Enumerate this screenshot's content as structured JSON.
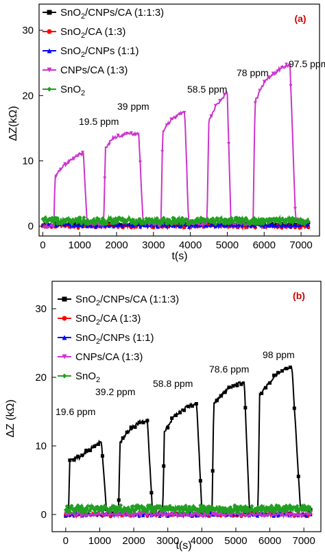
{
  "chart_data": [
    {
      "type": "line",
      "panel_label": "(a)",
      "xlabel": "t(s)",
      "ylabel": "ΔZ(kΩ)",
      "xlim": [
        -100,
        7500
      ],
      "ylim": [
        -1.5,
        34
      ],
      "xticks": [
        0,
        1000,
        2000,
        3000,
        4000,
        5000,
        6000,
        7000
      ],
      "yticks": [
        0,
        10,
        20,
        30
      ],
      "grid": false,
      "legend_position": "top-left",
      "series": [
        {
          "name": "SnO2/CNPs/CA (1:1:3)",
          "name_main": "SnO",
          "name_sub": "2",
          "name_rest": "/CNPs/CA (1:1:3)",
          "color": "#000000",
          "marker": "square",
          "points": [
            [
              0,
              0.3
            ],
            [
              7200,
              0.3
            ]
          ]
        },
        {
          "name": "SnO2/CA (1:3)",
          "name_main": "SnO",
          "name_sub": "2",
          "name_rest": "/CA (1:3)",
          "color": "#ff0000",
          "marker": "circle",
          "points": [
            [
              0,
              0
            ],
            [
              7200,
              0
            ]
          ]
        },
        {
          "name": "SnO2/CNPs (1:1)",
          "name_main": "SnO",
          "name_sub": "2",
          "name_rest": "/CNPs (1:1)",
          "color": "#0000ff",
          "marker": "triangle",
          "points": [
            [
              0,
              0.1
            ],
            [
              7200,
              0.1
            ]
          ]
        },
        {
          "name": "CNPs/CA (1:3)",
          "name_main": "CNPs/CA (1:3)",
          "name_sub": "",
          "name_rest": "",
          "color": "#cc33cc",
          "marker": "triangle-down",
          "points": [
            [
              0,
              0
            ],
            [
              300,
              0
            ],
            [
              330,
              7.5
            ],
            [
              420,
              8.5
            ],
            [
              700,
              9.8
            ],
            [
              1000,
              11.0
            ],
            [
              1100,
              11.2
            ],
            [
              1200,
              0.5
            ],
            [
              1650,
              0.2
            ],
            [
              1700,
              12.0
            ],
            [
              1900,
              13.5
            ],
            [
              2200,
              14.0
            ],
            [
              2600,
              14.2
            ],
            [
              2720,
              0.5
            ],
            [
              3200,
              0.2
            ],
            [
              3250,
              14.5
            ],
            [
              3500,
              16.5
            ],
            [
              3850,
              17.5
            ],
            [
              3950,
              0.6
            ],
            [
              4450,
              0.3
            ],
            [
              4500,
              16.0
            ],
            [
              4700,
              18.5
            ],
            [
              5000,
              20.5
            ],
            [
              5100,
              0.6
            ],
            [
              5700,
              0.3
            ],
            [
              5750,
              19.0
            ],
            [
              6000,
              22.0
            ],
            [
              6400,
              24.0
            ],
            [
              6700,
              24.8
            ],
            [
              6850,
              1.0
            ],
            [
              7200,
              0.5
            ]
          ]
        },
        {
          "name": "SnO2",
          "name_main": "SnO",
          "name_sub": "2",
          "name_rest": "",
          "color": "#22a022",
          "marker": "diamond",
          "points": [
            [
              0,
              0.8
            ],
            [
              7200,
              0.8
            ]
          ]
        }
      ],
      "annotations": [
        "19.5 ppm",
        "39 ppm",
        "58.5 ppm",
        "78 ppm",
        "97.5 ppm"
      ]
    },
    {
      "type": "line",
      "panel_label": "(b)",
      "xlabel": "t(s)",
      "ylabel": "ΔZ (kΩ)",
      "xlim": [
        -400,
        7500
      ],
      "ylim": [
        -2.5,
        34
      ],
      "xticks": [
        0,
        1000,
        2000,
        3000,
        4000,
        5000,
        6000,
        7000
      ],
      "yticks": [
        0,
        10,
        20,
        30
      ],
      "grid": false,
      "legend_position": "top-left",
      "series": [
        {
          "name": "SnO2/CNPs/CA (1:1:3)",
          "name_main": "SnO",
          "name_sub": "2",
          "name_rest": "/CNPs/CA (1:1:3)",
          "color": "#000000",
          "marker": "square",
          "points": [
            [
              0,
              0
            ],
            [
              80,
              0
            ],
            [
              120,
              8.0
            ],
            [
              400,
              8.3
            ],
            [
              700,
              9.5
            ],
            [
              1000,
              10.6
            ],
            [
              1050,
              10.5
            ],
            [
              1200,
              0.5
            ],
            [
              1550,
              0.2
            ],
            [
              1600,
              10.5
            ],
            [
              1900,
              12.5
            ],
            [
              2200,
              13.5
            ],
            [
              2400,
              13.6
            ],
            [
              2550,
              0.5
            ],
            [
              2850,
              0.2
            ],
            [
              2900,
              12.0
            ],
            [
              3200,
              14.5
            ],
            [
              3600,
              15.8
            ],
            [
              3850,
              16.2
            ],
            [
              4000,
              0.6
            ],
            [
              4300,
              0.3
            ],
            [
              4350,
              16.0
            ],
            [
              4700,
              18.0
            ],
            [
              5000,
              19.0
            ],
            [
              5250,
              19.2
            ],
            [
              5400,
              0.6
            ],
            [
              5650,
              0.3
            ],
            [
              5700,
              17.5
            ],
            [
              6100,
              20.0
            ],
            [
              6500,
              21.3
            ],
            [
              6650,
              21.5
            ],
            [
              6900,
              0.8
            ],
            [
              7200,
              0.5
            ]
          ]
        },
        {
          "name": "SnO2/CA (1:3)",
          "name_main": "SnO",
          "name_sub": "2",
          "name_rest": "/CA (1:3)",
          "color": "#ff0000",
          "marker": "circle",
          "points": [
            [
              0,
              0
            ],
            [
              7200,
              0
            ]
          ]
        },
        {
          "name": "SnO2/CNPs (1:1)",
          "name_main": "SnO",
          "name_sub": "2",
          "name_rest": "/CNPs (1:1)",
          "color": "#0000ff",
          "marker": "triangle",
          "points": [
            [
              0,
              0
            ],
            [
              7200,
              0
            ]
          ]
        },
        {
          "name": "CNPs/CA (1:3)",
          "name_main": "CNPs/CA (1:3)",
          "name_sub": "",
          "name_rest": "",
          "color": "#cc33cc",
          "marker": "triangle-down",
          "points": [
            [
              0,
              0
            ],
            [
              7200,
              0
            ]
          ]
        },
        {
          "name": "SnO2",
          "name_main": "SnO",
          "name_sub": "2",
          "name_rest": "",
          "color": "#22a022",
          "marker": "diamond",
          "points": [
            [
              0,
              0.8
            ],
            [
              7200,
              0.8
            ]
          ]
        }
      ],
      "annotations": [
        "19.6 ppm",
        "39.2 ppm",
        "58.8 ppm",
        "78.6 ppm",
        "98 ppm"
      ]
    }
  ]
}
